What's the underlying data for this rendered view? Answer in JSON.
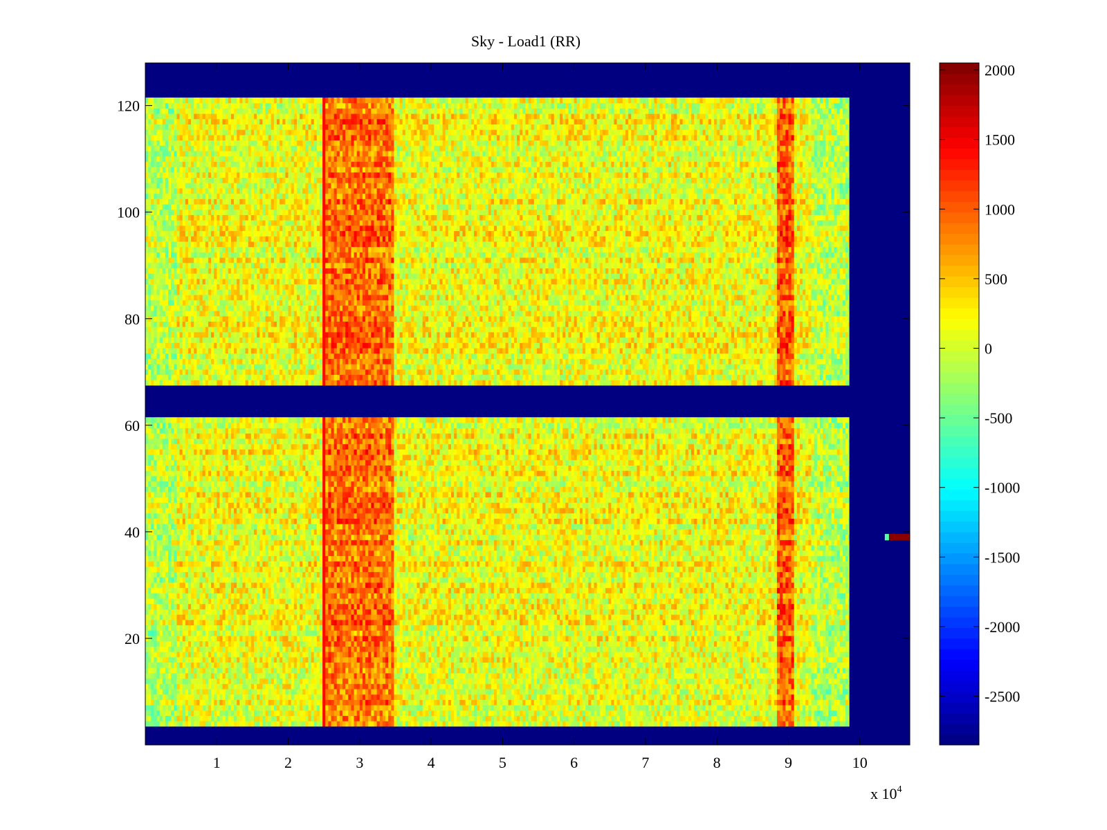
{
  "chart_data": {
    "type": "heatmap",
    "title": "Sky - Load1 (RR)",
    "xlabel": "",
    "ylabel": "",
    "x_multiplier_label": "x 10",
    "x_multiplier_exponent": "4",
    "xlim": [
      0,
      10.7
    ],
    "ylim": [
      0,
      128
    ],
    "x_ticks": [
      1,
      2,
      3,
      4,
      5,
      6,
      7,
      8,
      9,
      10
    ],
    "x_tick_labels": [
      "1",
      "2",
      "3",
      "4",
      "5",
      "6",
      "7",
      "8",
      "9",
      "10"
    ],
    "y_ticks": [
      20,
      40,
      60,
      80,
      100,
      120
    ],
    "y_tick_labels": [
      "20",
      "40",
      "60",
      "80",
      "100",
      "120"
    ],
    "colormap": "jet",
    "color_range": [
      -2850,
      2050
    ],
    "colorbar_ticks": [
      2000,
      1500,
      1000,
      500,
      0,
      -500,
      -1000,
      -1500,
      -2000,
      -2500
    ],
    "colorbar_tick_labels": [
      "2000",
      "1500",
      "1000",
      "500",
      "0",
      "-500",
      "-1000",
      "-1500",
      "-2000",
      "-2500"
    ],
    "background_value": -2850,
    "data_regions": [
      {
        "name": "upper block",
        "x_range": [
          0,
          9.85
        ],
        "y_range": [
          67.5,
          121.5
        ],
        "typical_value": 150,
        "spread": 450
      },
      {
        "name": "lower block",
        "x_range": [
          0,
          9.85
        ],
        "y_range": [
          3.5,
          61.5
        ],
        "typical_value": 150,
        "spread": 450
      }
    ],
    "gap_rows": [
      [
        121.5,
        128
      ],
      [
        61.5,
        67.5
      ],
      [
        0,
        3.5
      ]
    ],
    "high_bands": [
      {
        "x_range": [
          2.48,
          3.45
        ],
        "typical_value": 900
      },
      {
        "x_range": [
          8.8,
          9.05
        ],
        "typical_value": 1000
      }
    ],
    "edge_line": {
      "x": 2.49,
      "typical_value": 1400
    },
    "anomaly": {
      "y": 39,
      "x_range": [
        10.35,
        10.7
      ],
      "value": 2000
    }
  }
}
